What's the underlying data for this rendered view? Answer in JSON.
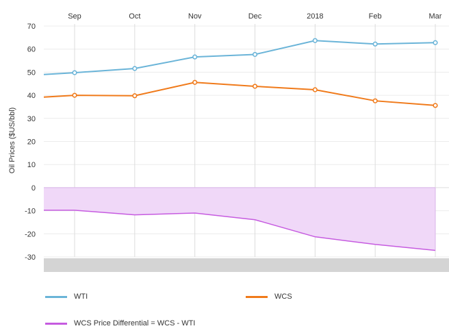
{
  "chart_data": {
    "type": "line",
    "categories": [
      "Sep",
      "Oct",
      "Nov",
      "Dec",
      "2018",
      "Feb",
      "Mar"
    ],
    "ylabel": "Oil Prices ($US/bbl)",
    "ylim": [
      -30,
      70
    ],
    "yticks": [
      70,
      60,
      50,
      40,
      30,
      20,
      10,
      0,
      -10,
      -20,
      -30
    ],
    "grid": true,
    "x_start": 49.0,
    "legend_placement": "bottom",
    "series": [
      {
        "name": "WTI",
        "color": "#6ab4d8",
        "lead": 49.0,
        "values": [
          49.8,
          51.6,
          56.6,
          57.7,
          63.7,
          62.2,
          62.8
        ],
        "markers": true
      },
      {
        "name": "WCS",
        "color": "#f07a1a",
        "lead": 39.2,
        "values": [
          40.0,
          39.8,
          45.6,
          43.9,
          42.4,
          37.6,
          35.6
        ],
        "markers": true
      },
      {
        "name": "WCS Price Differential = WCS - WTI",
        "color": "#c65be0",
        "fill": "#f0d8f8",
        "lead": -9.8,
        "values": [
          -9.8,
          -11.8,
          -11.0,
          -13.9,
          -21.3,
          -24.6,
          -27.2
        ],
        "markers": false
      }
    ]
  }
}
